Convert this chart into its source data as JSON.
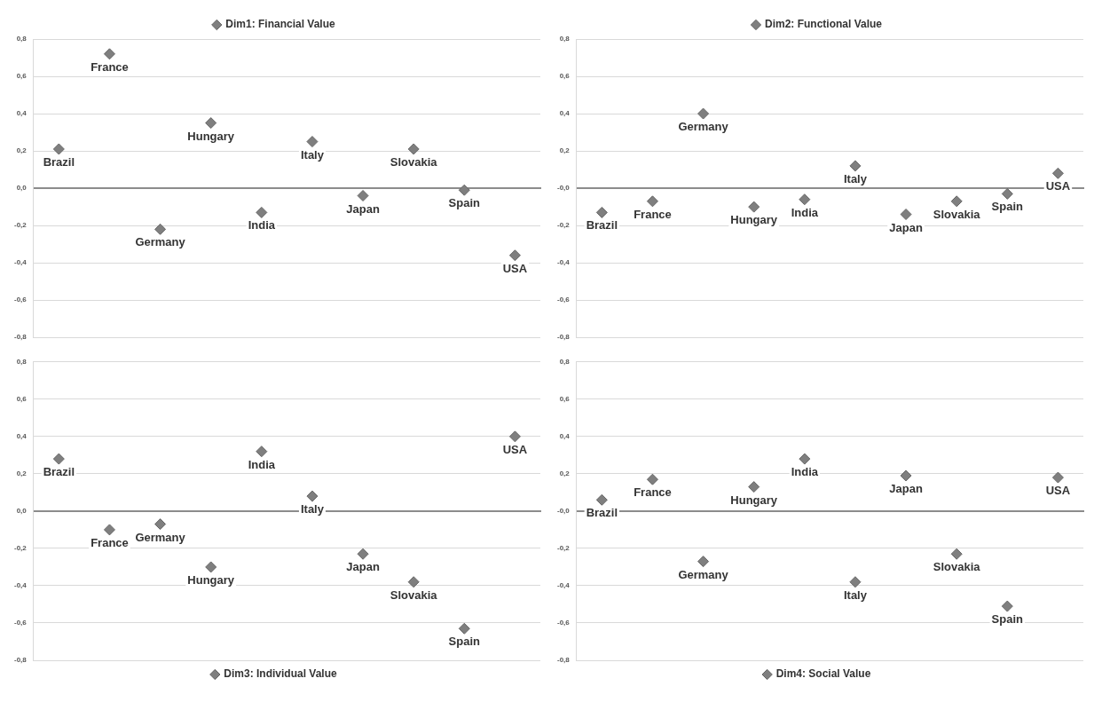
{
  "chart_data": [
    {
      "type": "scatter",
      "categories": [
        null,
        null,
        null,
        null,
        null,
        null,
        null,
        null,
        null,
        null
      ],
      "series": [
        {
          "name": "Dim1: Financial Value",
          "color": "#7f7f7f",
          "values": [
            0.21,
            0.72,
            -0.22,
            0.35,
            -0.13,
            0.25,
            -0.04,
            0.21,
            -0.01,
            -0.36
          ],
          "value_labels": [
            "Brazil",
            "France",
            "Germany",
            "Hungary",
            "India",
            "Italy",
            "Japan",
            "Slovakia",
            "Spain",
            "USA"
          ]
        }
      ],
      "ylim": [
        -0.8,
        0.8
      ],
      "yticks": [
        {
          "value": -0.8,
          "label": "-0,8"
        },
        {
          "value": -0.6,
          "label": "-0,6"
        },
        {
          "value": -0.4,
          "label": "-0,4"
        },
        {
          "value": -0.2,
          "label": "-0,2"
        },
        {
          "value": 0,
          "label": "0,0"
        },
        {
          "value": 0.2,
          "label": "0,2"
        },
        {
          "value": 0.4,
          "label": "0,4"
        },
        {
          "value": 0.6,
          "label": "0,6"
        },
        {
          "value": 0.8,
          "label": "0,8"
        }
      ],
      "grid": "y",
      "legend": "top",
      "marker": "diamond",
      "tick_labels": "y"
    },
    {
      "type": "scatter",
      "categories": [
        null,
        null,
        null,
        null,
        null,
        null,
        null,
        null,
        null,
        null
      ],
      "series": [
        {
          "name": "Dim2: Functional Value",
          "color": "#7f7f7f",
          "values": [
            -0.13,
            -0.07,
            0.4,
            -0.1,
            -0.06,
            0.12,
            -0.14,
            -0.07,
            -0.03,
            0.08
          ],
          "value_labels": [
            "Brazil",
            "France",
            "Germany",
            "Hungary",
            "India",
            "Italy",
            "Japan",
            "Slovakia",
            "Spain",
            "USA"
          ]
        }
      ],
      "ylim": [
        -0.8,
        0.8
      ],
      "yticks": [
        {
          "value": -0.8,
          "label": "-0,8"
        },
        {
          "value": -0.6,
          "label": "-0,6"
        },
        {
          "value": -0.4,
          "label": "-0,4"
        },
        {
          "value": -0.2,
          "label": "-0,2"
        },
        {
          "value": 0,
          "label": "-0,0"
        },
        {
          "value": 0.2,
          "label": "0,2"
        },
        {
          "value": 0.4,
          "label": "0,4"
        },
        {
          "value": 0.6,
          "label": "0,6"
        },
        {
          "value": 0.8,
          "label": "0,8"
        }
      ],
      "grid": "y",
      "legend": "top",
      "marker": "diamond",
      "tick_labels": "y"
    },
    {
      "type": "scatter",
      "categories": [
        null,
        null,
        null,
        null,
        null,
        null,
        null,
        null,
        null,
        null
      ],
      "series": [
        {
          "name": "Dim3: Individual Value",
          "color": "#7f7f7f",
          "values": [
            0.28,
            -0.1,
            -0.07,
            -0.3,
            0.32,
            0.08,
            -0.23,
            -0.38,
            -0.63,
            0.4
          ],
          "value_labels": [
            "Brazil",
            "France",
            "Germany",
            "Hungary",
            "India",
            "Italy",
            "Japan",
            "Slovakia",
            "Spain",
            "USA"
          ]
        }
      ],
      "ylim": [
        -0.8,
        0.8
      ],
      "yticks": [
        {
          "value": -0.8,
          "label": "-0,8"
        },
        {
          "value": -0.6,
          "label": "-0,6"
        },
        {
          "value": -0.4,
          "label": "-0,4"
        },
        {
          "value": -0.2,
          "label": "-0,2"
        },
        {
          "value": 0,
          "label": "0,0"
        },
        {
          "value": 0.2,
          "label": "0,2"
        },
        {
          "value": 0.4,
          "label": "0,4"
        },
        {
          "value": 0.6,
          "label": "0,6"
        },
        {
          "value": 0.8,
          "label": "0,8"
        }
      ],
      "grid": "y",
      "legend": "bottom",
      "marker": "diamond",
      "tick_labels": "y"
    },
    {
      "type": "scatter",
      "categories": [
        null,
        null,
        null,
        null,
        null,
        null,
        null,
        null,
        null,
        null
      ],
      "series": [
        {
          "name": "Dim4: Social Value",
          "color": "#7f7f7f",
          "values": [
            0.06,
            0.17,
            -0.27,
            0.13,
            0.28,
            -0.38,
            0.19,
            -0.23,
            -0.51,
            0.18
          ],
          "value_labels": [
            "Brazil",
            "France",
            "Germany",
            "Hungary",
            "India",
            "Italy",
            "Japan",
            "Slovakia",
            "Spain",
            "USA"
          ]
        }
      ],
      "ylim": [
        -0.8,
        0.8
      ],
      "yticks": [
        {
          "value": -0.8,
          "label": "-0,8"
        },
        {
          "value": -0.6,
          "label": "-0,6"
        },
        {
          "value": -0.4,
          "label": "-0,4"
        },
        {
          "value": -0.2,
          "label": "-0,2"
        },
        {
          "value": 0,
          "label": "-0,0"
        },
        {
          "value": 0.2,
          "label": "0,2"
        },
        {
          "value": 0.4,
          "label": "0,4"
        },
        {
          "value": 0.6,
          "label": "0,6"
        },
        {
          "value": 0.8,
          "label": "0,8"
        }
      ],
      "grid": "y",
      "legend": "bottom",
      "marker": "diamond",
      "tick_labels": "y"
    }
  ]
}
